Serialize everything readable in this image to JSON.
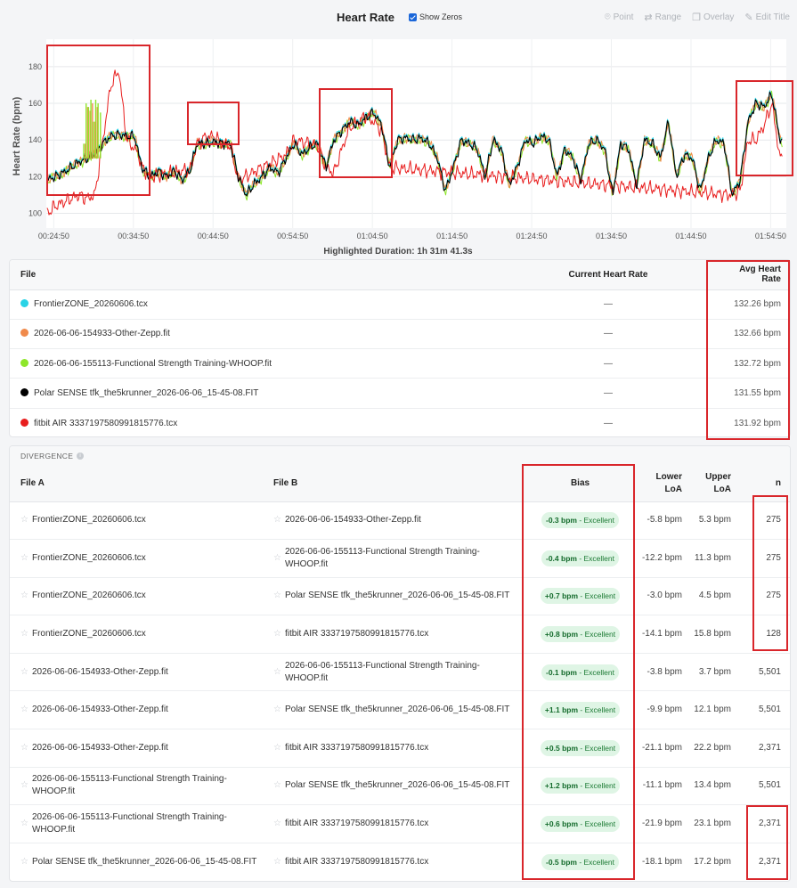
{
  "header": {
    "title": "Heart Rate",
    "show_zeros_label": "Show Zeros",
    "tools": [
      {
        "icon": "pin-icon",
        "glyph": "⌾",
        "label": "Point"
      },
      {
        "icon": "range-arrows-icon",
        "glyph": "⇄",
        "label": "Range"
      },
      {
        "icon": "overlay-icon",
        "glyph": "❐",
        "label": "Overlay"
      },
      {
        "icon": "edit-icon",
        "glyph": "✎",
        "label": "Edit Title"
      }
    ]
  },
  "chart_data": {
    "type": "line",
    "ylabel": "Heart Rate (bpm)",
    "xlabel": "Highlighted Duration: 1h 31m 41.3s",
    "x_ticks": [
      "00:24:50",
      "00:34:50",
      "00:44:50",
      "00:54:50",
      "01:04:50",
      "01:14:50",
      "01:24:50",
      "01:34:50",
      "01:44:50",
      "01:54:50"
    ],
    "y_ticks": [
      100,
      120,
      140,
      160,
      180
    ],
    "xlim_minutes": [
      23.9,
      116.8
    ],
    "ylim": [
      92,
      195
    ],
    "grid": true,
    "series": [
      {
        "color": "#29d3e6"
      },
      {
        "color": "#f08a4b"
      },
      {
        "color": "#8ee62a"
      },
      {
        "color": "#000000"
      },
      {
        "color": "#e81e1e"
      }
    ],
    "base_profile": [
      [
        24.0,
        118
      ],
      [
        25.0,
        120
      ],
      [
        26.0,
        122
      ],
      [
        27.0,
        125
      ],
      [
        28.0,
        128
      ],
      [
        29.0,
        130
      ],
      [
        30.0,
        132
      ],
      [
        31.0,
        138
      ],
      [
        32.0,
        142
      ],
      [
        33.0,
        143
      ],
      [
        34.0,
        142
      ],
      [
        35.0,
        142
      ],
      [
        35.5,
        132
      ],
      [
        36.0,
        124
      ],
      [
        37.0,
        120
      ],
      [
        38.0,
        123
      ],
      [
        39.0,
        120
      ],
      [
        40.0,
        123
      ],
      [
        41.0,
        118
      ],
      [
        42.0,
        124
      ],
      [
        42.8,
        138
      ],
      [
        44.0,
        138
      ],
      [
        45.0,
        139
      ],
      [
        46.0,
        138
      ],
      [
        47.0,
        138
      ],
      [
        48.0,
        120
      ],
      [
        49.0,
        110
      ],
      [
        50.0,
        116
      ],
      [
        51.0,
        120
      ],
      [
        52.0,
        125
      ],
      [
        53.0,
        122
      ],
      [
        54.0,
        130
      ],
      [
        55.0,
        138
      ],
      [
        56.0,
        132
      ],
      [
        57.0,
        136
      ],
      [
        58.0,
        138
      ],
      [
        59.0,
        125
      ],
      [
        60.0,
        140
      ],
      [
        61.0,
        145
      ],
      [
        62.0,
        150
      ],
      [
        63.0,
        148
      ],
      [
        64.0,
        152
      ],
      [
        65.0,
        155
      ],
      [
        66.0,
        148
      ],
      [
        67.0,
        125
      ],
      [
        68.0,
        140
      ],
      [
        69.0,
        141
      ],
      [
        70.0,
        140
      ],
      [
        71.0,
        141
      ],
      [
        72.0,
        138
      ],
      [
        73.0,
        130
      ],
      [
        74.0,
        112
      ],
      [
        75.0,
        125
      ],
      [
        76.0,
        140
      ],
      [
        77.0,
        138
      ],
      [
        78.0,
        135
      ],
      [
        79.0,
        120
      ],
      [
        80.0,
        140
      ],
      [
        81.0,
        135
      ],
      [
        82.0,
        115
      ],
      [
        83.0,
        125
      ],
      [
        84.0,
        140
      ],
      [
        85.0,
        138
      ],
      [
        86.0,
        142
      ],
      [
        87.0,
        140
      ],
      [
        88.0,
        120
      ],
      [
        89.0,
        135
      ],
      [
        90.0,
        130
      ],
      [
        91.0,
        118
      ],
      [
        92.0,
        138
      ],
      [
        93.0,
        140
      ],
      [
        94.0,
        135
      ],
      [
        95.0,
        110
      ],
      [
        96.0,
        138
      ],
      [
        97.0,
        135
      ],
      [
        98.0,
        115
      ],
      [
        99.0,
        140
      ],
      [
        100.0,
        138
      ],
      [
        101.0,
        130
      ],
      [
        102.0,
        150
      ],
      [
        103.0,
        120
      ],
      [
        104.0,
        132
      ],
      [
        105.0,
        130
      ],
      [
        106.0,
        112
      ],
      [
        107.0,
        130
      ],
      [
        108.0,
        140
      ],
      [
        109.0,
        138
      ],
      [
        110.0,
        110
      ],
      [
        111.0,
        118
      ],
      [
        112.0,
        150
      ],
      [
        113.0,
        160
      ],
      [
        114.0,
        158
      ],
      [
        115.0,
        165
      ],
      [
        116.0,
        140
      ]
    ],
    "red_profile": [
      [
        24.0,
        100
      ],
      [
        25.0,
        104
      ],
      [
        26.0,
        106
      ],
      [
        27.0,
        108
      ],
      [
        28.0,
        110
      ],
      [
        29.0,
        108
      ],
      [
        30.0,
        110
      ],
      [
        31.0,
        140
      ],
      [
        32.0,
        170
      ],
      [
        33.0,
        178
      ],
      [
        34.0,
        140
      ],
      [
        35.0,
        135
      ],
      [
        35.5,
        132
      ],
      [
        36.0,
        124
      ],
      [
        37.0,
        120
      ],
      [
        42.0,
        124
      ],
      [
        42.8,
        138
      ],
      [
        44.0,
        142
      ],
      [
        45.0,
        142
      ],
      [
        46.0,
        138
      ],
      [
        47.0,
        137
      ],
      [
        48.0,
        118
      ],
      [
        54.0,
        132
      ],
      [
        55.0,
        140
      ],
      [
        58.0,
        137
      ],
      [
        59.0,
        125
      ],
      [
        60.0,
        122
      ],
      [
        61.0,
        135
      ],
      [
        62.0,
        147
      ],
      [
        63.0,
        150
      ],
      [
        64.0,
        153
      ],
      [
        65.0,
        150
      ],
      [
        66.0,
        145
      ],
      [
        67.0,
        125
      ],
      [
        110.0,
        110
      ],
      [
        111.0,
        112
      ],
      [
        112.0,
        140
      ],
      [
        113.0,
        140
      ],
      [
        114.0,
        148
      ],
      [
        115.0,
        160
      ],
      [
        116.0,
        130
      ]
    ],
    "spikes_green": [
      [
        28.6,
        138
      ],
      [
        28.9,
        160
      ],
      [
        29.2,
        158
      ],
      [
        29.5,
        162
      ],
      [
        29.8,
        150
      ],
      [
        30.1,
        162
      ],
      [
        30.4,
        160
      ],
      [
        30.7,
        155
      ]
    ],
    "spikes_orange": [
      [
        28.8,
        138
      ],
      [
        29.1,
        158
      ],
      [
        29.4,
        156
      ],
      [
        29.7,
        160
      ],
      [
        30.0,
        150
      ],
      [
        30.3,
        158
      ]
    ]
  },
  "files": {
    "headers": {
      "file": "File",
      "current": "Current Heart Rate",
      "avg": "Avg Heart Rate"
    },
    "rows": [
      {
        "color": "#29d3e6",
        "name": "FrontierZONE_20260606.tcx",
        "current": "—",
        "avg": "132.26 bpm"
      },
      {
        "color": "#f08a4b",
        "name": "2026-06-06-154933-Other-Zepp.fit",
        "current": "—",
        "avg": "132.66 bpm"
      },
      {
        "color": "#8ee62a",
        "name": "2026-06-06-155113-Functional Strength Training-WHOOP.fit",
        "current": "—",
        "avg": "132.72 bpm"
      },
      {
        "color": "#000000",
        "name": "Polar SENSE tfk_the5krunner_2026-06-06_15-45-08.FIT",
        "current": "—",
        "avg": "131.55 bpm"
      },
      {
        "color": "#e81e1e",
        "name": "fitbit AIR 3337197580991815776.tcx",
        "current": "—",
        "avg": "131.92 bpm"
      }
    ]
  },
  "divergence": {
    "title": "DIVERGENCE",
    "headers": {
      "a": "File A",
      "b": "File B",
      "bias": "Bias",
      "lower": "Lower LoA",
      "upper": "Upper LoA",
      "n": "n"
    },
    "rows": [
      {
        "a": "FrontierZONE_20260606.tcx",
        "b": "2026-06-06-154933-Other-Zepp.fit",
        "bias": "-0.3 bpm",
        "rating": " - Excellent",
        "lower": "-5.8 bpm",
        "upper": "5.3 bpm",
        "n": "275"
      },
      {
        "a": "FrontierZONE_20260606.tcx",
        "b": "2026-06-06-155113-Functional Strength Training-WHOOP.fit",
        "bias": "-0.4 bpm",
        "rating": " - Excellent",
        "lower": "-12.2 bpm",
        "upper": "11.3 bpm",
        "n": "275"
      },
      {
        "a": "FrontierZONE_20260606.tcx",
        "b": "Polar SENSE tfk_the5krunner_2026-06-06_15-45-08.FIT",
        "bias": "+0.7 bpm",
        "rating": " - Excellent",
        "lower": "-3.0 bpm",
        "upper": "4.5 bpm",
        "n": "275"
      },
      {
        "a": "FrontierZONE_20260606.tcx",
        "b": "fitbit AIR 3337197580991815776.tcx",
        "bias": "+0.8 bpm",
        "rating": " - Excellent",
        "lower": "-14.1 bpm",
        "upper": "15.8 bpm",
        "n": "128"
      },
      {
        "a": "2026-06-06-154933-Other-Zepp.fit",
        "b": "2026-06-06-155113-Functional Strength Training-WHOOP.fit",
        "bias": "-0.1 bpm",
        "rating": " - Excellent",
        "lower": "-3.8 bpm",
        "upper": "3.7 bpm",
        "n": "5,501"
      },
      {
        "a": "2026-06-06-154933-Other-Zepp.fit",
        "b": "Polar SENSE tfk_the5krunner_2026-06-06_15-45-08.FIT",
        "bias": "+1.1 bpm",
        "rating": " - Excellent",
        "lower": "-9.9 bpm",
        "upper": "12.1 bpm",
        "n": "5,501"
      },
      {
        "a": "2026-06-06-154933-Other-Zepp.fit",
        "b": "fitbit AIR 3337197580991815776.tcx",
        "bias": "+0.5 bpm",
        "rating": " - Excellent",
        "lower": "-21.1 bpm",
        "upper": "22.2 bpm",
        "n": "2,371"
      },
      {
        "a": "2026-06-06-155113-Functional Strength Training-WHOOP.fit",
        "b": "Polar SENSE tfk_the5krunner_2026-06-06_15-45-08.FIT",
        "bias": "+1.2 bpm",
        "rating": " - Excellent",
        "lower": "-11.1 bpm",
        "upper": "13.4 bpm",
        "n": "5,501"
      },
      {
        "a": "2026-06-06-155113-Functional Strength Training-WHOOP.fit",
        "b": "fitbit AIR 3337197580991815776.tcx",
        "bias": "+0.6 bpm",
        "rating": " - Excellent",
        "lower": "-21.9 bpm",
        "upper": "23.1 bpm",
        "n": "2,371"
      },
      {
        "a": "Polar SENSE tfk_the5krunner_2026-06-06_15-45-08.FIT",
        "b": "fitbit AIR 3337197580991815776.tcx",
        "bias": "-0.5 bpm",
        "rating": " - Excellent",
        "lower": "-18.1 bpm",
        "upper": "17.2 bpm",
        "n": "2,371"
      }
    ]
  },
  "annotation_color": "#d9262b"
}
